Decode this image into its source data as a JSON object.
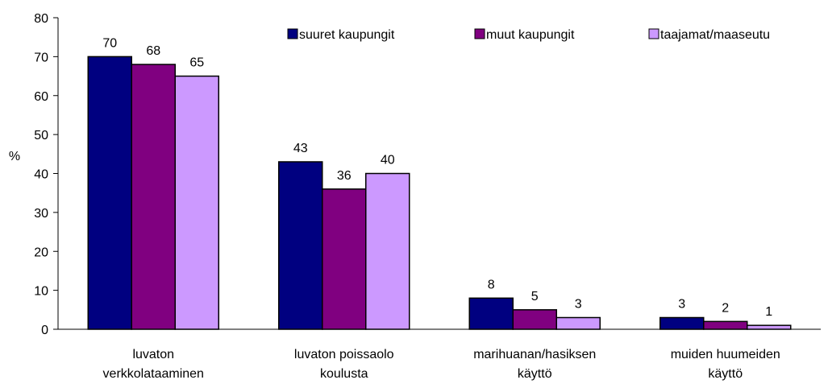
{
  "chart_data": {
    "type": "bar",
    "y_label": "%",
    "categories": [
      [
        "luvaton",
        "verkkolataaminen"
      ],
      [
        "luvaton poissaolo",
        "koulusta"
      ],
      [
        "marihuanan/hasiksen",
        "käyttö"
      ],
      [
        "muiden huumeiden",
        "käyttö"
      ]
    ],
    "series": [
      {
        "name": "suuret kaupungit",
        "color": "#000080",
        "values": [
          70,
          43,
          8,
          3
        ]
      },
      {
        "name": "muut kaupungit",
        "color": "#800080",
        "values": [
          68,
          36,
          5,
          2
        ]
      },
      {
        "name": "taajamat/maaseutu",
        "color": "#cc99ff",
        "values": [
          65,
          40,
          3,
          1
        ]
      }
    ],
    "ylim": [
      0,
      80
    ],
    "yticks": [
      0,
      10,
      20,
      30,
      40,
      50,
      60,
      70,
      80
    ]
  }
}
